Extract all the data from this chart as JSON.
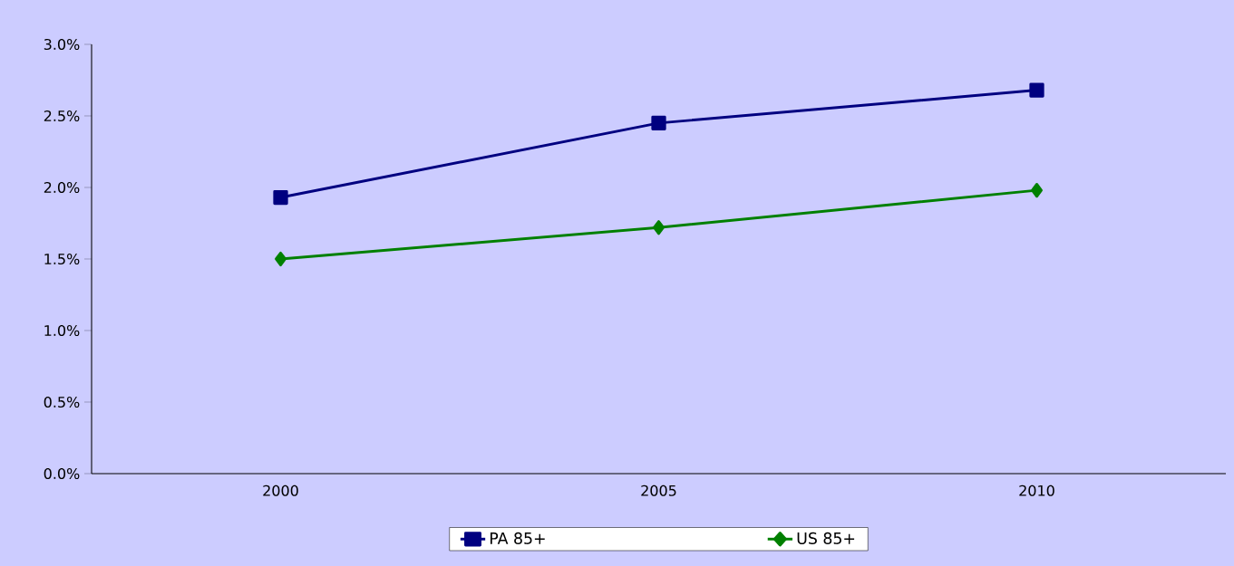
{
  "chart_data": {
    "type": "line",
    "categories": [
      "2000",
      "2005",
      "2010"
    ],
    "series": [
      {
        "name": "PA 85+",
        "color": "#000080",
        "marker": "square",
        "values": [
          1.93,
          2.45,
          2.68
        ]
      },
      {
        "name": "US 85+",
        "color": "#008000",
        "marker": "diamond",
        "values": [
          1.5,
          1.72,
          1.98
        ]
      }
    ],
    "ylim": [
      0,
      3
    ],
    "yticks": [
      {
        "value": 0,
        "label": "0.0%"
      },
      {
        "value": 0.5,
        "label": "0.5%"
      },
      {
        "value": 1,
        "label": "1.0%"
      },
      {
        "value": 1.5,
        "label": "1.5%"
      },
      {
        "value": 2,
        "label": "2.0%"
      },
      {
        "value": 2.5,
        "label": "2.5%"
      },
      {
        "value": 3,
        "label": "3.0%"
      }
    ],
    "grid": false,
    "legend": "bottom",
    "line_style": "solid"
  }
}
